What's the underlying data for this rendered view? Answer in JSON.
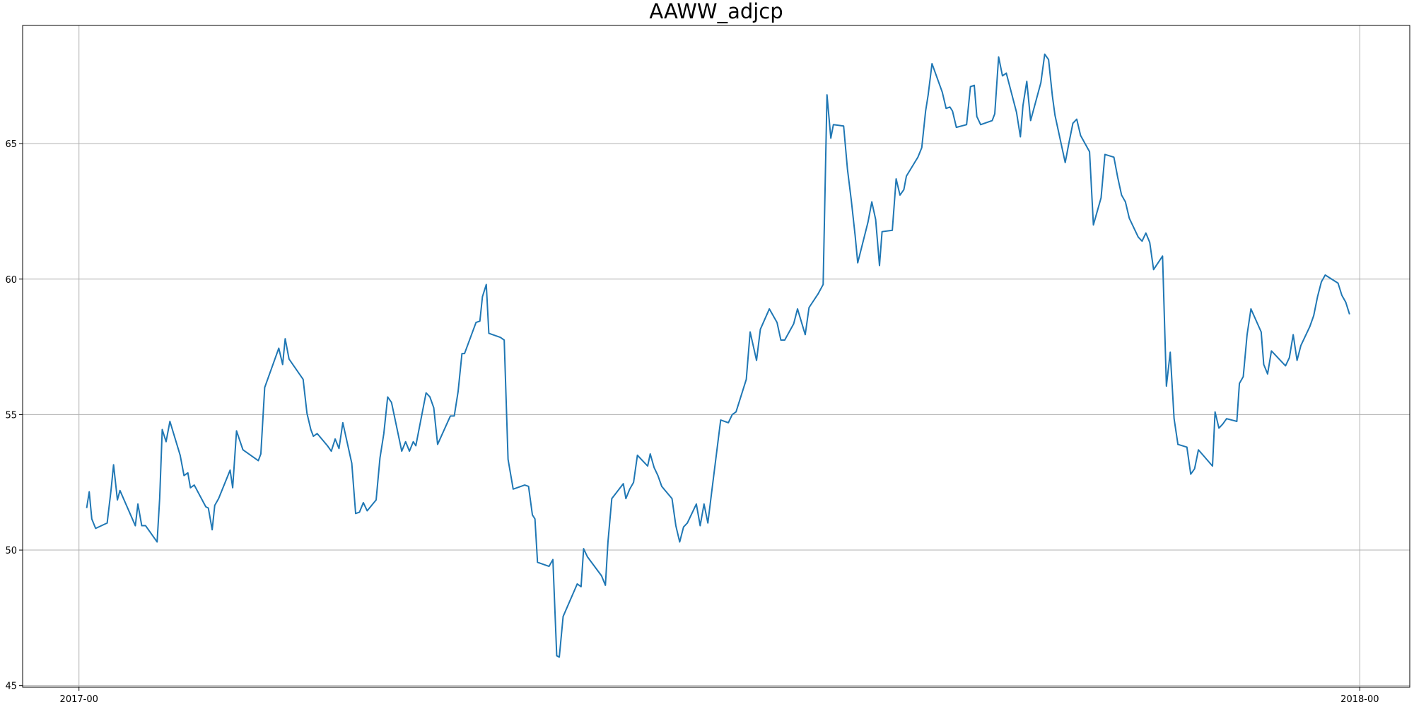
{
  "chart_data": {
    "type": "line",
    "title": "AAWW_adjcp",
    "color": "#1f77b4",
    "grid": true,
    "xlim": [
      2016.956,
      2018.039
    ],
    "ylim": [
      44.94,
      69.36
    ],
    "xticks": [
      {
        "value": 2017,
        "label": "2017-00"
      },
      {
        "value": 2018,
        "label": "2018-00"
      }
    ],
    "yticks": [
      45,
      50,
      55,
      60,
      65
    ],
    "x": [
      2017.006,
      2017.008,
      2017.01,
      2017.013,
      2017.022,
      2017.025,
      2017.027,
      2017.03,
      2017.032,
      2017.044,
      2017.046,
      2017.049,
      2017.052,
      2017.061,
      2017.063,
      2017.065,
      2017.068,
      2017.071,
      2017.079,
      2017.082,
      2017.085,
      2017.087,
      2017.09,
      2017.099,
      2017.101,
      2017.104,
      2017.106,
      2017.109,
      2017.118,
      2017.12,
      2017.123,
      2017.128,
      2017.14,
      2017.142,
      2017.145,
      2017.156,
      2017.159,
      2017.161,
      2017.164,
      2017.175,
      2017.178,
      2017.181,
      2017.183,
      2017.186,
      2017.194,
      2017.197,
      2017.2,
      2017.203,
      2017.206,
      2017.213,
      2017.216,
      2017.219,
      2017.222,
      2017.225,
      2017.232,
      2017.235,
      2017.238,
      2017.241,
      2017.244,
      2017.252,
      2017.255,
      2017.258,
      2017.261,
      2017.263,
      2017.271,
      2017.274,
      2017.277,
      2017.28,
      2017.29,
      2017.293,
      2017.296,
      2017.299,
      2017.301,
      2017.31,
      2017.313,
      2017.315,
      2017.318,
      2017.32,
      2017.329,
      2017.332,
      2017.335,
      2017.339,
      2017.348,
      2017.351,
      2017.354,
      2017.356,
      2017.358,
      2017.367,
      2017.37,
      2017.373,
      2017.375,
      2017.378,
      2017.389,
      2017.392,
      2017.394,
      2017.397,
      2017.408,
      2017.411,
      2017.413,
      2017.416,
      2017.425,
      2017.427,
      2017.43,
      2017.433,
      2017.436,
      2017.444,
      2017.446,
      2017.449,
      2017.452,
      2017.455,
      2017.463,
      2017.466,
      2017.469,
      2017.472,
      2017.475,
      2017.482,
      2017.485,
      2017.488,
      2017.491,
      2017.494,
      2017.501,
      2017.507,
      2017.51,
      2017.513,
      2017.521,
      2017.524,
      2017.529,
      2017.532,
      2017.539,
      2017.545,
      2017.548,
      2017.551,
      2017.558,
      2017.561,
      2017.567,
      2017.57,
      2017.577,
      2017.581,
      2017.584,
      2017.587,
      2017.589,
      2017.597,
      2017.6,
      2017.603,
      2017.606,
      2017.608,
      2017.616,
      2017.619,
      2017.622,
      2017.625,
      2017.627,
      2017.635,
      2017.638,
      2017.641,
      2017.644,
      2017.646,
      2017.655,
      2017.658,
      2017.661,
      2017.663,
      2017.666,
      2017.674,
      2017.677,
      2017.68,
      2017.682,
      2017.685,
      2017.693,
      2017.696,
      2017.699,
      2017.701,
      2017.704,
      2017.713,
      2017.715,
      2017.718,
      2017.721,
      2017.724,
      2017.732,
      2017.735,
      2017.737,
      2017.74,
      2017.743,
      2017.751,
      2017.754,
      2017.757,
      2017.76,
      2017.762,
      2017.77,
      2017.773,
      2017.776,
      2017.779,
      2017.782,
      2017.789,
      2017.792,
      2017.795,
      2017.798,
      2017.801,
      2017.808,
      2017.811,
      2017.814,
      2017.817,
      2017.82,
      2017.827,
      2017.83,
      2017.833,
      2017.836,
      2017.839,
      2017.846,
      2017.849,
      2017.852,
      2017.855,
      2017.858,
      2017.865,
      2017.868,
      2017.871,
      2017.874,
      2017.885,
      2017.887,
      2017.89,
      2017.893,
      2017.896,
      2017.904,
      2017.906,
      2017.909,
      2017.912,
      2017.915,
      2017.923,
      2017.925,
      2017.928,
      2017.931,
      2017.942,
      2017.945,
      2017.948,
      2017.951,
      2017.954,
      2017.961,
      2017.964,
      2017.967,
      2017.97,
      2017.973,
      2017.983,
      2017.986,
      2017.989,
      2017.992
    ],
    "values": [
      51.55,
      52.15,
      51.15,
      50.8,
      51.0,
      52.2,
      53.15,
      51.85,
      52.2,
      50.9,
      51.7,
      50.9,
      50.9,
      50.3,
      51.9,
      54.45,
      54.0,
      54.75,
      53.5,
      52.75,
      52.85,
      52.3,
      52.4,
      51.6,
      51.55,
      50.75,
      51.65,
      51.9,
      52.95,
      52.3,
      54.4,
      53.7,
      53.3,
      53.55,
      56.0,
      57.45,
      56.85,
      57.8,
      57.05,
      56.3,
      55.05,
      54.45,
      54.2,
      54.3,
      53.85,
      53.65,
      54.1,
      53.75,
      54.7,
      53.2,
      51.35,
      51.4,
      51.75,
      51.45,
      51.85,
      53.4,
      54.3,
      55.65,
      55.45,
      53.65,
      54.0,
      53.65,
      54.0,
      53.85,
      55.8,
      55.65,
      55.25,
      53.9,
      54.95,
      54.95,
      55.85,
      57.25,
      57.25,
      58.4,
      58.45,
      59.35,
      59.8,
      58.0,
      57.85,
      57.75,
      53.35,
      52.25,
      52.4,
      52.35,
      51.3,
      51.15,
      49.55,
      49.4,
      49.65,
      46.1,
      46.05,
      47.55,
      48.75,
      48.65,
      50.05,
      49.75,
      49.05,
      48.7,
      50.3,
      51.9,
      52.45,
      51.9,
      52.25,
      52.5,
      53.5,
      53.1,
      53.55,
      53.05,
      52.75,
      52.35,
      51.9,
      50.9,
      50.3,
      50.85,
      51.0,
      51.7,
      50.9,
      51.7,
      51.0,
      52.15,
      54.8,
      54.7,
      55.0,
      55.1,
      56.3,
      58.05,
      57.0,
      58.15,
      58.9,
      58.4,
      57.75,
      57.75,
      58.35,
      58.9,
      57.95,
      58.95,
      59.45,
      59.8,
      66.8,
      65.2,
      65.7,
      65.65,
      64.05,
      62.9,
      61.6,
      60.6,
      62.1,
      62.85,
      62.2,
      60.5,
      61.75,
      61.8,
      63.7,
      63.1,
      63.3,
      63.8,
      64.5,
      64.85,
      66.2,
      66.8,
      67.95,
      66.9,
      66.3,
      66.35,
      66.2,
      65.6,
      65.7,
      67.1,
      67.15,
      66.0,
      65.7,
      65.85,
      66.1,
      68.2,
      67.5,
      67.6,
      66.15,
      65.25,
      66.4,
      67.3,
      65.85,
      67.25,
      68.3,
      68.1,
      66.75,
      66.05,
      64.3,
      65.05,
      65.75,
      65.9,
      65.3,
      64.7,
      62.0,
      62.5,
      63.0,
      64.6,
      64.5,
      63.75,
      63.1,
      62.85,
      62.25,
      61.55,
      61.4,
      61.7,
      61.35,
      60.35,
      60.85,
      56.05,
      57.3,
      54.85,
      53.9,
      53.8,
      52.8,
      53.0,
      53.7,
      53.1,
      55.1,
      54.5,
      54.65,
      54.85,
      54.75,
      56.15,
      56.4,
      57.95,
      58.9,
      58.05,
      56.85,
      56.5,
      57.35,
      56.8,
      57.1,
      57.95,
      57.0,
      57.55,
      58.25,
      58.65,
      59.35,
      59.9,
      60.15,
      59.85,
      59.4,
      59.15,
      58.7
    ]
  }
}
